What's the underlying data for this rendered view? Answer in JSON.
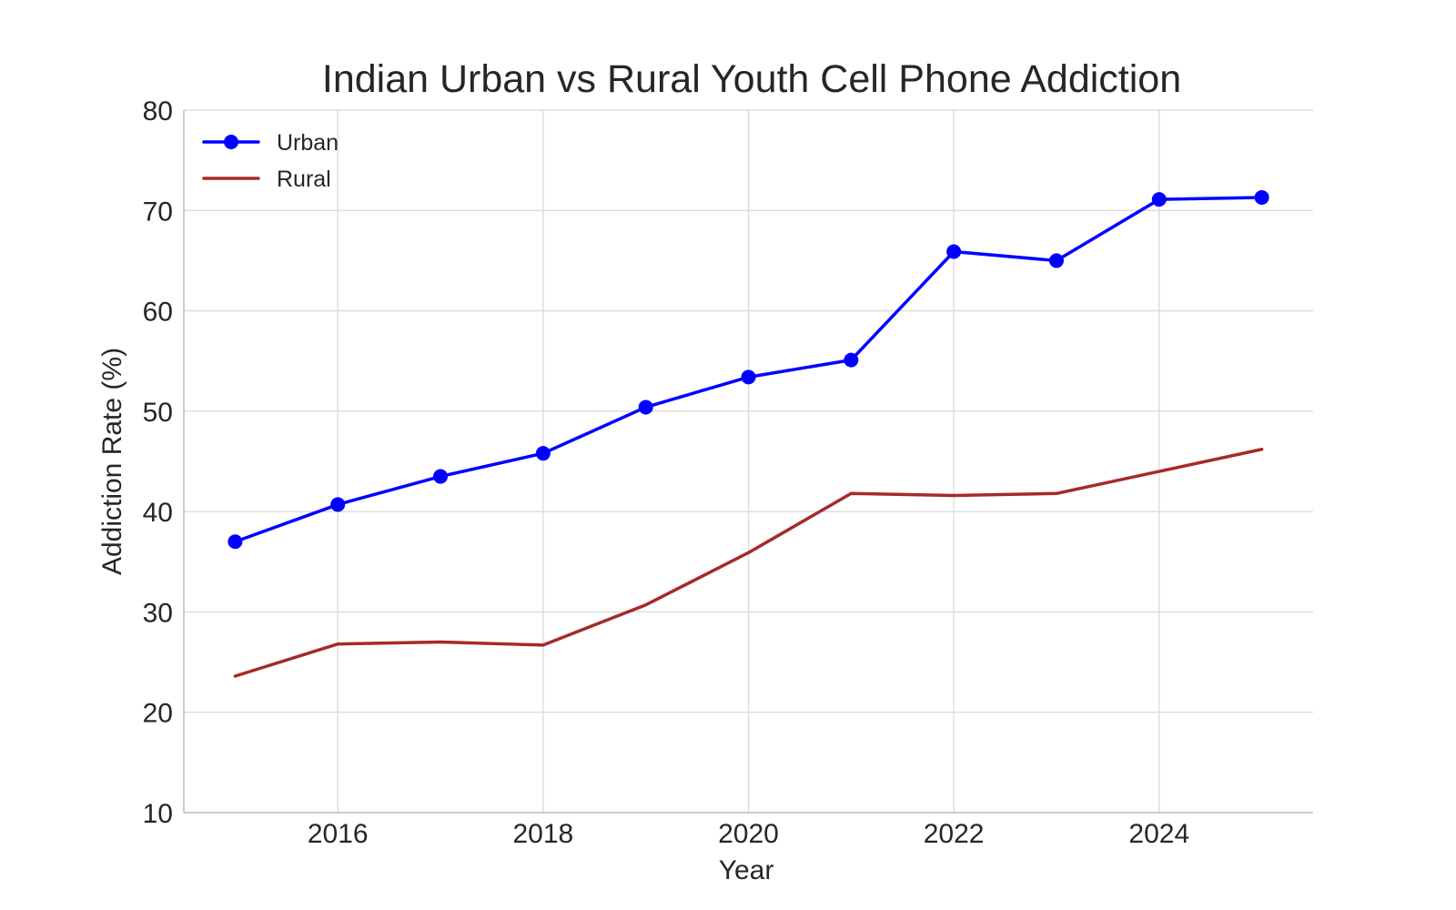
{
  "chart_data": {
    "type": "line",
    "title": "Indian Urban vs Rural Youth Cell Phone Addiction",
    "xlabel": "Year",
    "ylabel": "Addiction Rate (%)",
    "x": [
      2015,
      2016,
      2017,
      2018,
      2019,
      2020,
      2021,
      2022,
      2023,
      2024,
      2025
    ],
    "xlim": [
      2014.5,
      2025.5
    ],
    "ylim": [
      10,
      80
    ],
    "xticks": [
      2016,
      2018,
      2020,
      2022,
      2024
    ],
    "yticks": [
      10,
      20,
      30,
      40,
      50,
      60,
      70,
      80
    ],
    "grid": true,
    "legend_position": "upper-left",
    "series": [
      {
        "name": "Urban",
        "color": "#0000ff",
        "marker": "circle",
        "values": [
          37.0,
          40.7,
          43.5,
          45.8,
          50.4,
          53.4,
          55.1,
          65.9,
          65.0,
          71.1,
          71.3
        ]
      },
      {
        "name": "Rural",
        "color": "#a52a2a",
        "marker": "none",
        "values": [
          23.6,
          26.8,
          27.0,
          26.7,
          30.7,
          35.9,
          41.8,
          41.6,
          41.8,
          44.0,
          46.2
        ]
      }
    ]
  }
}
